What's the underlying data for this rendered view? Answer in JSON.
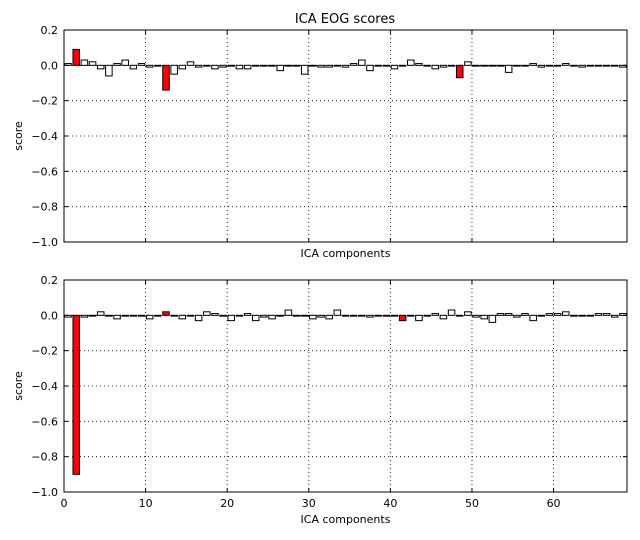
{
  "title": "ICA EOG scores",
  "colors": {
    "normal": "#ffffff",
    "highlight": "#ff0000",
    "edge": "#000000"
  },
  "chart_data": [
    {
      "type": "bar",
      "title": "ICA EOG scores",
      "xlabel": "ICA components",
      "ylabel": "score",
      "ylim": [
        -1.0,
        0.2
      ],
      "xlim": [
        0,
        69
      ],
      "yticks": [
        0.2,
        0.0,
        -0.2,
        -0.4,
        -0.6,
        -0.8,
        -1.0
      ],
      "ytick_labels": [
        "0.2",
        "0.0",
        "−0.2",
        "−0.4",
        "−0.6",
        "−0.8",
        "−1.0"
      ],
      "xticks": [
        0,
        10,
        20,
        30,
        40,
        50,
        60
      ],
      "xtick_labels": [],
      "grid": true,
      "highlighted": [
        1,
        12,
        48
      ],
      "values": [
        0.01,
        0.09,
        0.03,
        0.02,
        -0.02,
        -0.06,
        0.01,
        0.03,
        -0.02,
        0.01,
        -0.01,
        0.0,
        -0.14,
        -0.05,
        -0.02,
        0.02,
        -0.01,
        0.0,
        -0.02,
        -0.01,
        0.0,
        -0.02,
        -0.02,
        0.0,
        0.0,
        0.0,
        -0.03,
        0.0,
        0.0,
        -0.05,
        0.0,
        -0.01,
        -0.01,
        0.0,
        -0.01,
        0.01,
        0.03,
        -0.03,
        0.0,
        0.0,
        -0.02,
        0.0,
        0.03,
        0.01,
        0.0,
        -0.02,
        -0.01,
        0.0,
        -0.07,
        0.02,
        0.0,
        0.0,
        0.0,
        0.0,
        -0.04,
        0.0,
        0.0,
        0.01,
        -0.01,
        0.0,
        0.0,
        0.01,
        0.0,
        -0.01,
        0.0,
        0.0,
        0.0,
        0.0,
        -0.01
      ]
    },
    {
      "type": "bar",
      "title": "",
      "xlabel": "ICA components",
      "ylabel": "score",
      "ylim": [
        -1.0,
        0.2
      ],
      "xlim": [
        0,
        69
      ],
      "yticks": [
        0.2,
        0.0,
        -0.2,
        -0.4,
        -0.6,
        -0.8,
        -1.0
      ],
      "ytick_labels": [
        "0.2",
        "0.0",
        "−0.2",
        "−0.4",
        "−0.6",
        "−0.8",
        "−1.0"
      ],
      "xticks": [
        0,
        10,
        20,
        30,
        40,
        50,
        60
      ],
      "xtick_labels": [
        "0",
        "10",
        "20",
        "30",
        "40",
        "50",
        "60"
      ],
      "grid": true,
      "highlighted": [
        1,
        12,
        41
      ],
      "values": [
        -0.01,
        -0.9,
        -0.01,
        0.0,
        0.02,
        0.0,
        -0.02,
        0.0,
        0.0,
        0.0,
        -0.02,
        0.0,
        0.02,
        0.0,
        -0.02,
        0.0,
        -0.03,
        0.02,
        0.01,
        0.0,
        -0.03,
        0.0,
        0.01,
        -0.03,
        -0.01,
        -0.02,
        0.0,
        0.03,
        0.0,
        0.0,
        -0.02,
        -0.01,
        -0.02,
        0.03,
        0.0,
        0.0,
        0.0,
        -0.01,
        0.0,
        0.0,
        0.0,
        -0.03,
        0.0,
        -0.03,
        0.0,
        0.01,
        -0.02,
        0.03,
        0.0,
        0.02,
        -0.01,
        -0.02,
        -0.04,
        0.01,
        0.01,
        -0.01,
        0.01,
        -0.03,
        0.0,
        0.01,
        0.01,
        0.02,
        0.0,
        0.0,
        0.0,
        0.01,
        0.01,
        -0.01,
        0.01
      ]
    }
  ]
}
